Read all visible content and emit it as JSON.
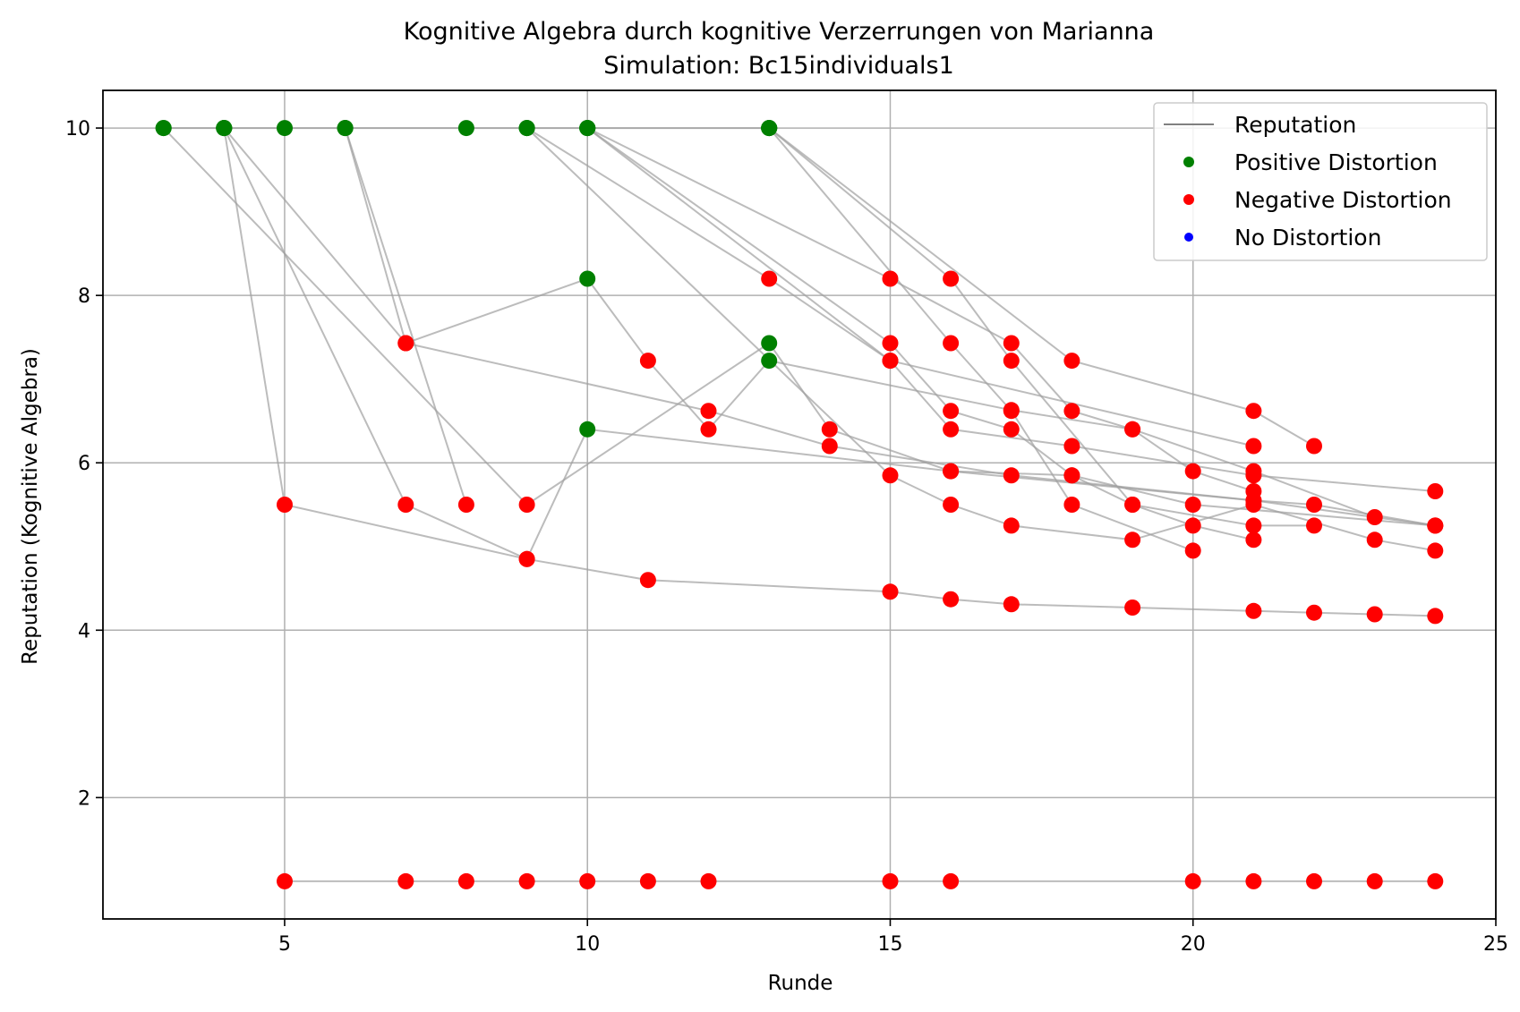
{
  "chart_data": {
    "type": "scatter",
    "title": "Kognitive Algebra durch kognitive Verzerrungen von Marianna",
    "subtitle": "Simulation: Bc15individuals1",
    "xlabel": "Runde",
    "ylabel": "Reputation (Kognitive Algebra)",
    "xlim": [
      2,
      25
    ],
    "ylim": [
      0.55,
      10.45
    ],
    "xticks": [
      5,
      10,
      15,
      20,
      25
    ],
    "yticks": [
      2,
      4,
      6,
      8,
      10
    ],
    "grid": true,
    "legend_position": "top-right",
    "legend": [
      {
        "label": "Reputation",
        "kind": "line",
        "color": "#808080"
      },
      {
        "label": "Positive Distortion",
        "kind": "dot",
        "color": "#008000"
      },
      {
        "label": "Negative Distortion",
        "kind": "dot",
        "color": "#ff0000"
      },
      {
        "label": "No Distortion",
        "kind": "dot",
        "color": "#0000ff"
      }
    ],
    "colors": {
      "positive": "#008000",
      "negative": "#ff0000",
      "none": "#0000ff",
      "line": "#a0a0a0"
    },
    "series": [
      {
        "points": [
          [
            3,
            10,
            "pos"
          ],
          [
            4,
            10,
            "pos"
          ],
          [
            5,
            10,
            "pos"
          ],
          [
            6,
            10,
            "pos"
          ],
          [
            8,
            10,
            "pos"
          ],
          [
            9,
            10,
            "pos"
          ],
          [
            10,
            10,
            "pos"
          ],
          [
            13,
            10,
            "pos"
          ]
        ]
      },
      {
        "points": [
          [
            5,
            1,
            "neg"
          ],
          [
            7,
            1,
            "neg"
          ],
          [
            8,
            1,
            "neg"
          ],
          [
            9,
            1,
            "neg"
          ],
          [
            10,
            1,
            "neg"
          ],
          [
            11,
            1,
            "neg"
          ],
          [
            12,
            1,
            "neg"
          ],
          [
            15,
            1,
            "neg"
          ],
          [
            16,
            1,
            "neg"
          ],
          [
            20,
            1,
            "neg"
          ],
          [
            21,
            1,
            "neg"
          ],
          [
            22,
            1,
            "neg"
          ],
          [
            23,
            1,
            "neg"
          ],
          [
            24,
            1,
            "neg"
          ]
        ]
      },
      {
        "points": [
          [
            4,
            10,
            "pos"
          ],
          [
            5,
            5.5,
            "neg"
          ],
          [
            9,
            4.85,
            "neg"
          ],
          [
            11,
            4.6,
            "neg"
          ],
          [
            15,
            4.46,
            "neg"
          ],
          [
            16,
            4.37,
            "neg"
          ],
          [
            17,
            4.31,
            "neg"
          ],
          [
            19,
            4.27,
            "neg"
          ],
          [
            21,
            4.23,
            "neg"
          ],
          [
            22,
            4.21,
            "neg"
          ],
          [
            23,
            4.19,
            "neg"
          ],
          [
            24,
            4.17,
            "neg"
          ]
        ]
      },
      {
        "points": [
          [
            4,
            10,
            "pos"
          ],
          [
            7,
            5.5,
            "neg"
          ],
          [
            9,
            4.85,
            "neg"
          ],
          [
            10,
            6.4,
            "pos"
          ],
          [
            16,
            5.9,
            "neg"
          ],
          [
            21,
            5.55,
            "neg"
          ],
          [
            22,
            5.5,
            "neg"
          ],
          [
            24,
            5.25,
            "neg"
          ]
        ]
      },
      {
        "points": [
          [
            6,
            10,
            "pos"
          ],
          [
            8,
            5.5,
            "neg"
          ]
        ]
      },
      {
        "points": [
          [
            3,
            10,
            "pos"
          ],
          [
            9,
            5.5,
            "neg"
          ],
          [
            13,
            7.43,
            "pos"
          ],
          [
            14,
            6.4,
            "neg"
          ],
          [
            16,
            5.9,
            "neg"
          ],
          [
            18,
            5.85,
            "neg"
          ],
          [
            20,
            5.5,
            "neg"
          ],
          [
            24,
            5.25,
            "neg"
          ]
        ]
      },
      {
        "points": [
          [
            4,
            10,
            "pos"
          ],
          [
            7,
            7.43,
            "neg"
          ],
          [
            10,
            8.2,
            "pos"
          ],
          [
            11,
            7.22,
            "neg"
          ],
          [
            12,
            6.4,
            "neg"
          ],
          [
            13,
            7.22,
            "pos"
          ],
          [
            17,
            6.63,
            "neg"
          ],
          [
            19,
            6.4,
            "neg"
          ],
          [
            21,
            5.9,
            "neg"
          ],
          [
            23,
            5.35,
            "neg"
          ]
        ]
      },
      {
        "points": [
          [
            6,
            10,
            "pos"
          ],
          [
            7,
            7.43,
            "neg"
          ],
          [
            12,
            6.62,
            "neg"
          ],
          [
            14,
            6.2,
            "neg"
          ],
          [
            17,
            5.85,
            "neg"
          ],
          [
            21,
            5.55,
            "neg"
          ],
          [
            24,
            5.25,
            "neg"
          ]
        ]
      },
      {
        "points": [
          [
            9,
            10,
            "pos"
          ],
          [
            13,
            8.2,
            "neg"
          ],
          [
            15,
            7.22,
            "neg"
          ],
          [
            16,
            6.4,
            "neg"
          ],
          [
            18,
            6.2,
            "neg"
          ],
          [
            21,
            5.85,
            "neg"
          ],
          [
            24,
            5.66,
            "neg"
          ]
        ]
      },
      {
        "points": [
          [
            10,
            10,
            "pos"
          ],
          [
            15,
            7.43,
            "neg"
          ],
          [
            16,
            6.62,
            "neg"
          ],
          [
            17,
            6.4,
            "neg"
          ],
          [
            18,
            5.85,
            "neg"
          ],
          [
            19,
            5.5,
            "neg"
          ],
          [
            21,
            5.25,
            "neg"
          ],
          [
            22,
            5.25,
            "neg"
          ]
        ]
      },
      {
        "points": [
          [
            10,
            10,
            "pos"
          ],
          [
            15,
            8.2,
            "neg"
          ],
          [
            17,
            7.43,
            "neg"
          ],
          [
            18,
            6.62,
            "neg"
          ],
          [
            19,
            6.4,
            "neg"
          ],
          [
            20,
            5.9,
            "neg"
          ],
          [
            21,
            5.66,
            "neg"
          ]
        ]
      },
      {
        "points": [
          [
            13,
            10,
            "pos"
          ],
          [
            16,
            8.2,
            "neg"
          ],
          [
            17,
            7.22,
            "neg"
          ],
          [
            19,
            5.5,
            "neg"
          ],
          [
            20,
            5.25,
            "neg"
          ],
          [
            21,
            5.08,
            "neg"
          ]
        ]
      },
      {
        "points": [
          [
            13,
            10,
            "pos"
          ],
          [
            18,
            7.22,
            "neg"
          ],
          [
            21,
            6.62,
            "neg"
          ],
          [
            22,
            6.2,
            "neg"
          ]
        ]
      },
      {
        "points": [
          [
            13,
            10,
            "pos"
          ],
          [
            16,
            7.43,
            "neg"
          ],
          [
            17,
            6.62,
            "neg"
          ],
          [
            18,
            5.5,
            "neg"
          ],
          [
            20,
            4.95,
            "neg"
          ]
        ]
      },
      {
        "points": [
          [
            9,
            10,
            "pos"
          ],
          [
            15,
            5.85,
            "neg"
          ],
          [
            16,
            5.5,
            "neg"
          ],
          [
            17,
            5.25,
            "neg"
          ],
          [
            19,
            5.08,
            "neg"
          ],
          [
            21,
            5.5,
            "neg"
          ],
          [
            23,
            5.08,
            "neg"
          ],
          [
            24,
            4.95,
            "neg"
          ]
        ]
      },
      {
        "points": [
          [
            10,
            10,
            "pos"
          ],
          [
            15,
            7.22,
            "neg"
          ],
          [
            21,
            6.2,
            "neg"
          ]
        ]
      }
    ]
  }
}
